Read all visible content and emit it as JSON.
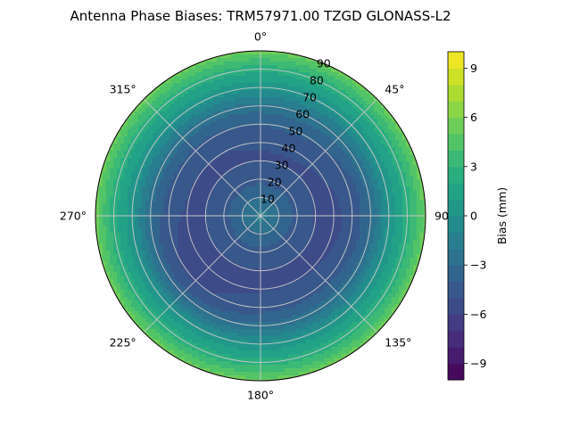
{
  "chart_data": {
    "type": "heatmap",
    "subtype": "polar-contourf",
    "title": "Antenna Phase Biases: TRM57971.00     TZGD GLONASS-L2",
    "colormap": "viridis",
    "theta_direction": "clockwise",
    "theta_zero": "north",
    "theta_ticks": [
      "0°",
      "45°",
      "90°",
      "135°",
      "180°",
      "225°",
      "270°",
      "315°"
    ],
    "r_ticks": [
      "10",
      "20",
      "30",
      "40",
      "50",
      "60",
      "70",
      "80",
      "90"
    ],
    "r_range": [
      0,
      90
    ],
    "grid": true,
    "colorbar": {
      "label": "Bias (mm)",
      "range": [
        -10,
        10
      ],
      "levels": 20,
      "ticks": [
        "−9",
        "−6",
        "−3",
        "0",
        "3",
        "6",
        "9"
      ]
    },
    "field_estimate": {
      "description_units": "mm",
      "center_bias": -1.5,
      "mid_ring_min": -5.5,
      "edge_bias": 5.5,
      "low_lobes": [
        {
          "azimuth_deg": 90,
          "zenith_deg": 55,
          "bias": -6
        },
        {
          "azimuth_deg": 230,
          "zenith_deg": 55,
          "bias": -6.5
        },
        {
          "azimuth_deg": 20,
          "zenith_deg": 50,
          "bias": -5
        }
      ]
    }
  }
}
